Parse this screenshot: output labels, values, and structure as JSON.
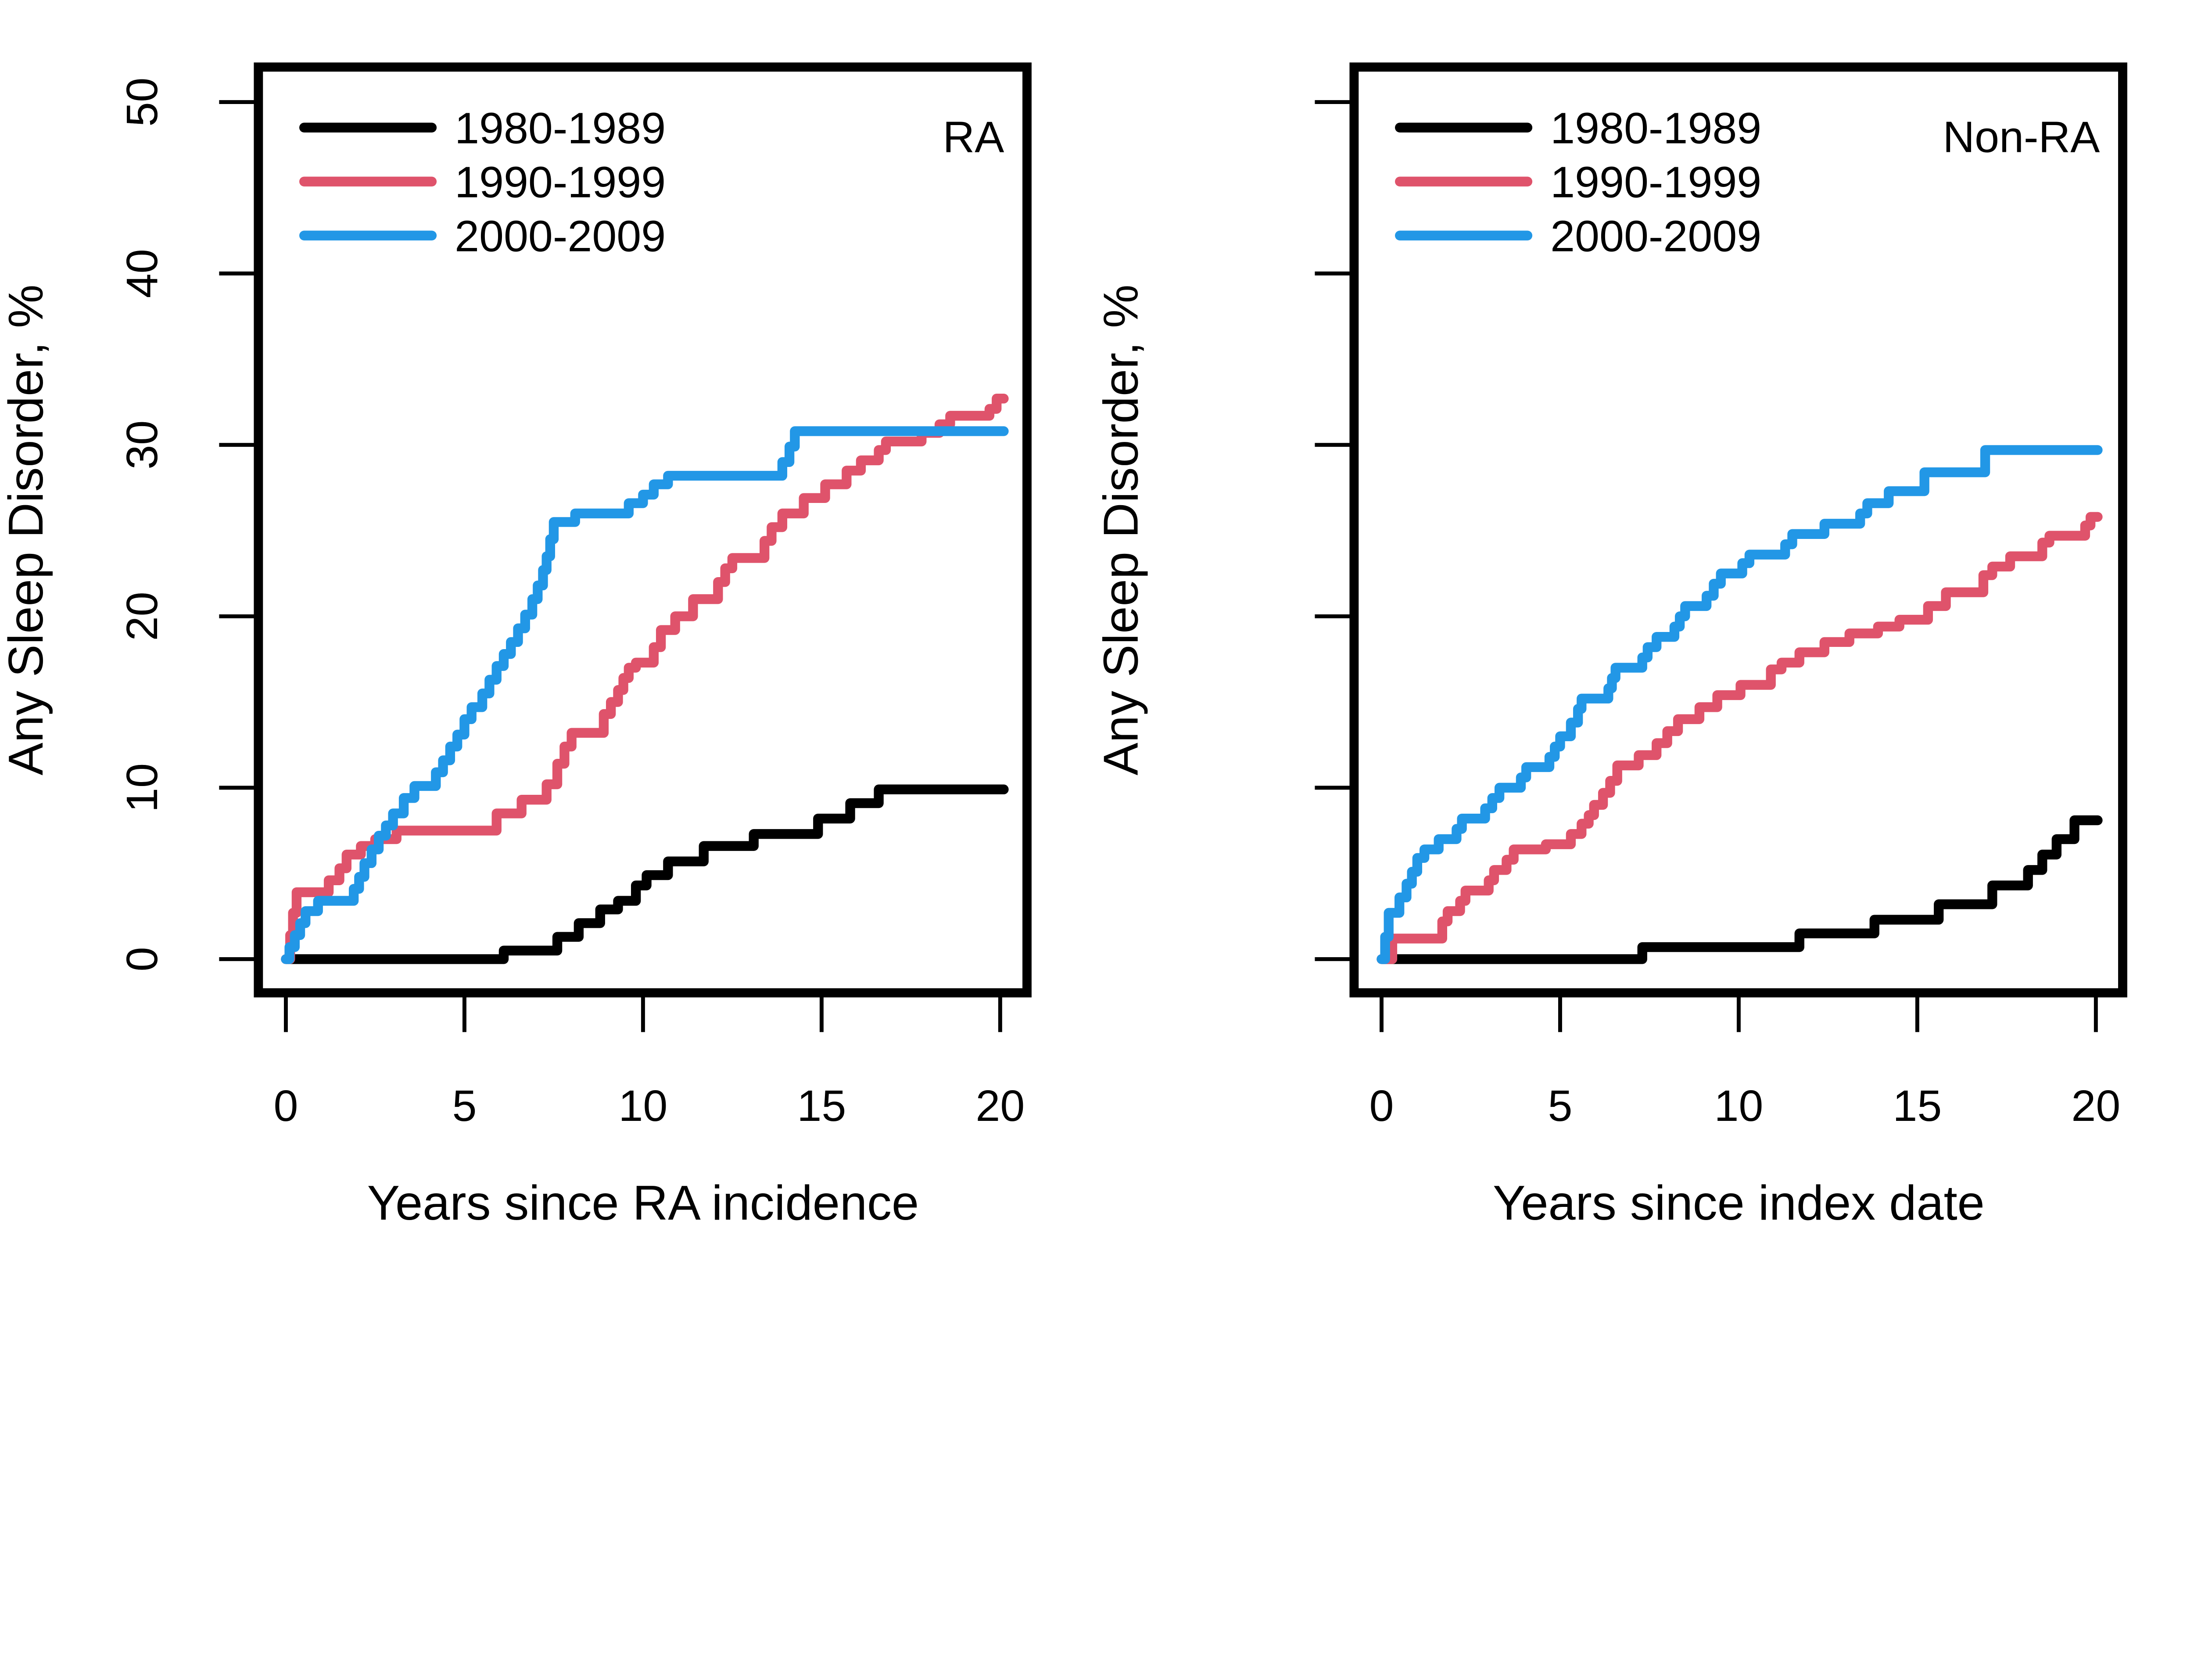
{
  "figure": {
    "background": "#ffffff",
    "description": "Two-panel step-curve plot of cumulative incidence of any sleep disorder by decade cohort"
  },
  "colors": {
    "series_1980_1989": "#000000",
    "series_1990_1999": "#DF536B",
    "series_2000_2009": "#2297E6",
    "axis": "#000000"
  },
  "chart_data": [
    {
      "type": "line",
      "line_style": "step-after",
      "panel_label": "RA",
      "xlabel": "Years since RA incidence",
      "ylabel": "Any Sleep Disorder, %",
      "xlim": [
        0,
        20
      ],
      "ylim": [
        0,
        50
      ],
      "xticks": [
        0,
        5,
        10,
        15,
        20
      ],
      "yticks": [
        0,
        10,
        20,
        30,
        40,
        50
      ],
      "grid": "off",
      "legend": {
        "position": "top-left",
        "entries": [
          "1980-1989",
          "1990-1999",
          "2000-2009"
        ]
      },
      "series": [
        {
          "name": "1980-1989",
          "color": "#000000",
          "points": [
            [
              0,
              0
            ],
            [
              6.1,
              0.5
            ],
            [
              7.6,
              1.3
            ],
            [
              8.2,
              2.1
            ],
            [
              8.8,
              2.9
            ],
            [
              9.3,
              3.4
            ],
            [
              9.8,
              4.3
            ],
            [
              10.1,
              4.9
            ],
            [
              10.7,
              5.7
            ],
            [
              11.7,
              6.6
            ],
            [
              13.1,
              7.3
            ],
            [
              14.9,
              8.2
            ],
            [
              15.8,
              9.1
            ],
            [
              16.6,
              9.9
            ],
            [
              20.1,
              9.9
            ]
          ]
        },
        {
          "name": "1990-1999",
          "color": "#DF536B",
          "points": [
            [
              0,
              0
            ],
            [
              0.12,
              1.4
            ],
            [
              0.2,
              2.7
            ],
            [
              0.3,
              3.9
            ],
            [
              1.2,
              4.6
            ],
            [
              1.5,
              5.3
            ],
            [
              1.7,
              6.1
            ],
            [
              2.1,
              6.6
            ],
            [
              2.5,
              7.0
            ],
            [
              3.1,
              7.5
            ],
            [
              5.9,
              8.5
            ],
            [
              6.6,
              9.3
            ],
            [
              7.3,
              10.2
            ],
            [
              7.6,
              11.4
            ],
            [
              7.8,
              12.4
            ],
            [
              8.0,
              13.2
            ],
            [
              8.9,
              14.3
            ],
            [
              9.1,
              15.0
            ],
            [
              9.3,
              15.7
            ],
            [
              9.45,
              16.4
            ],
            [
              9.6,
              17.0
            ],
            [
              9.8,
              17.3
            ],
            [
              10.3,
              18.2
            ],
            [
              10.5,
              19.2
            ],
            [
              10.9,
              20.0
            ],
            [
              11.4,
              21.0
            ],
            [
              12.1,
              22.0
            ],
            [
              12.3,
              22.8
            ],
            [
              12.5,
              23.4
            ],
            [
              13.4,
              24.4
            ],
            [
              13.6,
              25.2
            ],
            [
              13.9,
              26.0
            ],
            [
              14.5,
              26.9
            ],
            [
              15.1,
              27.7
            ],
            [
              15.7,
              28.5
            ],
            [
              16.1,
              29.1
            ],
            [
              16.6,
              29.7
            ],
            [
              16.8,
              30.2
            ],
            [
              17.8,
              30.7
            ],
            [
              18.3,
              31.2
            ],
            [
              18.6,
              31.7
            ],
            [
              19.7,
              32.1
            ],
            [
              19.9,
              32.7
            ],
            [
              20.1,
              32.7
            ]
          ]
        },
        {
          "name": "2000-2009",
          "color": "#2297E6",
          "points": [
            [
              0,
              0
            ],
            [
              0.1,
              0.7
            ],
            [
              0.25,
              1.4
            ],
            [
              0.4,
              2.1
            ],
            [
              0.55,
              2.8
            ],
            [
              0.9,
              3.4
            ],
            [
              1.9,
              4.1
            ],
            [
              2.05,
              4.8
            ],
            [
              2.2,
              5.6
            ],
            [
              2.4,
              6.4
            ],
            [
              2.6,
              7.2
            ],
            [
              2.8,
              7.8
            ],
            [
              3.0,
              8.5
            ],
            [
              3.3,
              9.4
            ],
            [
              3.6,
              10.1
            ],
            [
              4.2,
              10.9
            ],
            [
              4.4,
              11.6
            ],
            [
              4.6,
              12.4
            ],
            [
              4.8,
              13.1
            ],
            [
              5.0,
              14.0
            ],
            [
              5.2,
              14.7
            ],
            [
              5.5,
              15.5
            ],
            [
              5.7,
              16.3
            ],
            [
              5.9,
              17.1
            ],
            [
              6.1,
              17.8
            ],
            [
              6.3,
              18.5
            ],
            [
              6.5,
              19.3
            ],
            [
              6.7,
              20.1
            ],
            [
              6.9,
              21.0
            ],
            [
              7.05,
              21.8
            ],
            [
              7.2,
              22.7
            ],
            [
              7.3,
              23.5
            ],
            [
              7.4,
              24.5
            ],
            [
              7.5,
              25.5
            ],
            [
              8.1,
              26.0
            ],
            [
              9.6,
              26.6
            ],
            [
              10.0,
              27.1
            ],
            [
              10.3,
              27.7
            ],
            [
              10.7,
              28.2
            ],
            [
              13.9,
              29.0
            ],
            [
              14.1,
              29.9
            ],
            [
              14.25,
              30.8
            ],
            [
              20.1,
              30.8
            ]
          ]
        }
      ]
    },
    {
      "type": "line",
      "line_style": "step-after",
      "panel_label": "Non-RA",
      "xlabel": "Years since index date",
      "ylabel": "Any Sleep Disorder, %",
      "xlim": [
        0,
        20
      ],
      "ylim": [
        0,
        50
      ],
      "xticks": [
        0,
        5,
        10,
        15,
        20
      ],
      "yticks": [
        0,
        10,
        20,
        30,
        40,
        50
      ],
      "grid": "off",
      "legend": {
        "position": "top-left",
        "entries": [
          "1980-1989",
          "1990-1999",
          "2000-2009"
        ]
      },
      "series": [
        {
          "name": "1980-1989",
          "color": "#000000",
          "points": [
            [
              0,
              0
            ],
            [
              7.3,
              0.7
            ],
            [
              11.7,
              1.5
            ],
            [
              13.8,
              2.3
            ],
            [
              15.6,
              3.2
            ],
            [
              17.1,
              4.3
            ],
            [
              18.1,
              5.2
            ],
            [
              18.5,
              6.1
            ],
            [
              18.9,
              7.0
            ],
            [
              19.4,
              8.1
            ],
            [
              20.05,
              8.1
            ]
          ]
        },
        {
          "name": "1990-1999",
          "color": "#DF536B",
          "points": [
            [
              0,
              0
            ],
            [
              0.3,
              1.2
            ],
            [
              1.7,
              2.2
            ],
            [
              1.85,
              2.8
            ],
            [
              2.2,
              3.4
            ],
            [
              2.35,
              4.0
            ],
            [
              3.0,
              4.6
            ],
            [
              3.15,
              5.2
            ],
            [
              3.5,
              5.8
            ],
            [
              3.7,
              6.4
            ],
            [
              4.6,
              6.7
            ],
            [
              5.3,
              7.3
            ],
            [
              5.6,
              7.9
            ],
            [
              5.8,
              8.4
            ],
            [
              5.95,
              9.0
            ],
            [
              6.2,
              9.7
            ],
            [
              6.4,
              10.4
            ],
            [
              6.6,
              11.3
            ],
            [
              7.2,
              11.9
            ],
            [
              7.7,
              12.6
            ],
            [
              8.0,
              13.3
            ],
            [
              8.3,
              14.0
            ],
            [
              8.9,
              14.7
            ],
            [
              9.4,
              15.4
            ],
            [
              10.05,
              16.0
            ],
            [
              10.9,
              16.9
            ],
            [
              11.2,
              17.3
            ],
            [
              11.7,
              17.9
            ],
            [
              12.4,
              18.5
            ],
            [
              13.1,
              19.0
            ],
            [
              13.9,
              19.4
            ],
            [
              14.5,
              19.8
            ],
            [
              15.3,
              20.6
            ],
            [
              15.8,
              21.4
            ],
            [
              16.85,
              22.4
            ],
            [
              17.1,
              22.9
            ],
            [
              17.6,
              23.5
            ],
            [
              18.5,
              24.3
            ],
            [
              18.7,
              24.7
            ],
            [
              19.7,
              25.3
            ],
            [
              19.85,
              25.8
            ],
            [
              20.05,
              25.8
            ]
          ]
        },
        {
          "name": "2000-2009",
          "color": "#2297E6",
          "points": [
            [
              0,
              0
            ],
            [
              0.1,
              1.3
            ],
            [
              0.2,
              2.7
            ],
            [
              0.5,
              3.6
            ],
            [
              0.7,
              4.4
            ],
            [
              0.85,
              5.1
            ],
            [
              1.0,
              5.9
            ],
            [
              1.2,
              6.4
            ],
            [
              1.6,
              7.0
            ],
            [
              2.1,
              7.6
            ],
            [
              2.25,
              8.2
            ],
            [
              2.9,
              8.8
            ],
            [
              3.1,
              9.4
            ],
            [
              3.3,
              10.0
            ],
            [
              3.9,
              10.6
            ],
            [
              4.05,
              11.2
            ],
            [
              4.7,
              11.8
            ],
            [
              4.85,
              12.4
            ],
            [
              5.0,
              13.0
            ],
            [
              5.3,
              13.8
            ],
            [
              5.5,
              14.6
            ],
            [
              5.6,
              15.2
            ],
            [
              6.35,
              15.8
            ],
            [
              6.45,
              16.4
            ],
            [
              6.55,
              17.0
            ],
            [
              7.3,
              17.6
            ],
            [
              7.45,
              18.2
            ],
            [
              7.7,
              18.8
            ],
            [
              8.2,
              19.4
            ],
            [
              8.35,
              20.0
            ],
            [
              8.5,
              20.6
            ],
            [
              9.1,
              21.2
            ],
            [
              9.3,
              21.9
            ],
            [
              9.5,
              22.5
            ],
            [
              10.1,
              23.1
            ],
            [
              10.3,
              23.6
            ],
            [
              11.3,
              24.2
            ],
            [
              11.5,
              24.8
            ],
            [
              12.4,
              25.4
            ],
            [
              13.4,
              26.0
            ],
            [
              13.6,
              26.6
            ],
            [
              14.2,
              27.3
            ],
            [
              15.2,
              28.4
            ],
            [
              16.9,
              29.7
            ],
            [
              20.05,
              29.7
            ]
          ]
        }
      ]
    }
  ]
}
